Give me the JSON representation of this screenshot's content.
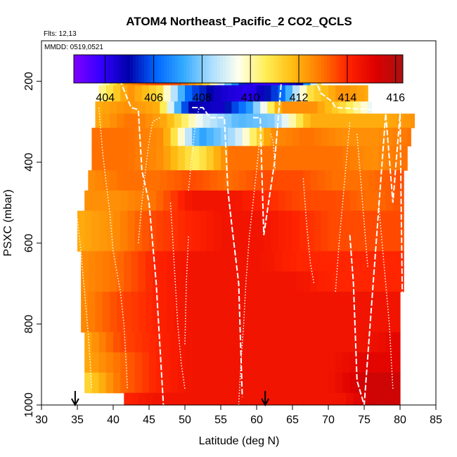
{
  "chart_data": {
    "type": "heatmap",
    "title": "ATOM4 Northeast_Pacific_2 CO2_QCLS",
    "flights_text": "Flts: 12,13",
    "dates_text": "MMDD: 0519,0521",
    "xlabel": "Latitude (deg N)",
    "ylabel": "PSXC (mbar)",
    "xlim": [
      30,
      85
    ],
    "ylim": [
      1000,
      100
    ],
    "x_ticks": [
      "30",
      "35",
      "40",
      "45",
      "50",
      "55",
      "60",
      "65",
      "70",
      "75",
      "80",
      "85"
    ],
    "y_ticks": [
      "200",
      "400",
      "600",
      "800",
      "1000"
    ],
    "grid": false,
    "colorbar": {
      "position": "top",
      "range": [
        402.7,
        416.3
      ],
      "ticks": [
        "404",
        "406",
        "408",
        "410",
        "412",
        "414",
        "416"
      ],
      "colors": [
        "#7f00ff",
        "#3300ff",
        "#0000aa",
        "#0066ff",
        "#33aaff",
        "#aaddff",
        "#ffffee",
        "#ffee55",
        "#ffbb11",
        "#ff7700",
        "#ff2200",
        "#dd0000",
        "#aa1111"
      ]
    },
    "arrows_at_lat": [
      34.7,
      61.2
    ],
    "layers": [
      {
        "p_top": 170,
        "p_bot": 210,
        "lat_min": 38.5,
        "lat_max": 69,
        "values": [
          409.5,
          412.5,
          413.5,
          413.5,
          412,
          408,
          404,
          403.5,
          405,
          412
        ]
      },
      {
        "p_top": 210,
        "p_bot": 250,
        "lat_min": 38,
        "lat_max": 75.5,
        "values": [
          410,
          412.5,
          411,
          406,
          404.5,
          404,
          406,
          411,
          412.5,
          412
        ]
      },
      {
        "p_top": 250,
        "p_bot": 280,
        "lat_min": 37.5,
        "lat_max": 76,
        "values": [
          412,
          412.5,
          412,
          405,
          404.5,
          407,
          412.5,
          412.5,
          411,
          409
        ]
      },
      {
        "p_top": 280,
        "p_bot": 315,
        "lat_min": 37.5,
        "lat_max": 82,
        "values": [
          412,
          413,
          412,
          409,
          407.5,
          408,
          412,
          412,
          412,
          412.5
        ]
      },
      {
        "p_top": 315,
        "p_bot": 360,
        "lat_min": 37,
        "lat_max": 81.5,
        "values": [
          413,
          413,
          412.5,
          407,
          408.5,
          412.5,
          413,
          412.5,
          412.5,
          413
        ]
      },
      {
        "p_top": 360,
        "p_bot": 420,
        "lat_min": 37,
        "lat_max": 81,
        "values": [
          413,
          413,
          412.5,
          410.5,
          413,
          413,
          413,
          413,
          412.5,
          413
        ]
      },
      {
        "p_top": 420,
        "p_bot": 470,
        "lat_min": 36.5,
        "lat_max": 80.5,
        "values": [
          412.5,
          413,
          413,
          413.5,
          413,
          413.5,
          413.5,
          413,
          413,
          413.5
        ]
      },
      {
        "p_top": 470,
        "p_bot": 520,
        "lat_min": 36,
        "lat_max": 80.5,
        "values": [
          412.5,
          412.5,
          413,
          414.5,
          414.5,
          414,
          413.5,
          413.5,
          413,
          413.5
        ]
      },
      {
        "p_top": 520,
        "p_bot": 570,
        "lat_min": 35,
        "lat_max": 80.5,
        "values": [
          412,
          412.5,
          413.5,
          414,
          414.5,
          414.5,
          414,
          413.5,
          413.5,
          413.5
        ]
      },
      {
        "p_top": 570,
        "p_bot": 620,
        "lat_min": 35,
        "lat_max": 80.5,
        "values": [
          412,
          412.5,
          413.5,
          414,
          414.5,
          414.5,
          414,
          413.5,
          413.5,
          413.5
        ]
      },
      {
        "p_top": 620,
        "p_bot": 670,
        "lat_min": 35.5,
        "lat_max": 80.5,
        "values": [
          412.5,
          413,
          414,
          414.5,
          414.5,
          414.5,
          414,
          414,
          414,
          414
        ]
      },
      {
        "p_top": 670,
        "p_bot": 720,
        "lat_min": 35.5,
        "lat_max": 80.5,
        "values": [
          412.5,
          413,
          414,
          414.5,
          414.5,
          414.5,
          414.5,
          414,
          414,
          414
        ]
      },
      {
        "p_top": 720,
        "p_bot": 770,
        "lat_min": 35.5,
        "lat_max": 80,
        "values": [
          412.5,
          413.5,
          414,
          414.5,
          414.5,
          414.5,
          414.5,
          414.5,
          414.5,
          414.5
        ]
      },
      {
        "p_top": 770,
        "p_bot": 820,
        "lat_min": 35.5,
        "lat_max": 80,
        "values": [
          412.5,
          413.5,
          414,
          414.5,
          414.5,
          414.5,
          414.5,
          414.5,
          414.5,
          414.5
        ]
      },
      {
        "p_top": 820,
        "p_bot": 870,
        "lat_min": 36,
        "lat_max": 80,
        "values": [
          412,
          413.5,
          414,
          414.5,
          414.5,
          414.5,
          414.5,
          414.5,
          414.5,
          415
        ]
      },
      {
        "p_top": 870,
        "p_bot": 920,
        "lat_min": 36,
        "lat_max": 80,
        "values": [
          412,
          413,
          414,
          414.5,
          414.5,
          414.5,
          414.5,
          414.5,
          415,
          415
        ]
      },
      {
        "p_top": 920,
        "p_bot": 970,
        "lat_min": 36,
        "lat_max": 80,
        "values": [
          411,
          413,
          414,
          414.5,
          414.5,
          414.5,
          414.5,
          414.5,
          415.5,
          415.5
        ]
      },
      {
        "p_top": 970,
        "p_bot": 1000,
        "lat_min": 41.5,
        "lat_max": 80,
        "values": [
          414,
          414.5,
          414.5,
          414.5,
          414.5,
          414.5,
          414.5,
          414.5,
          415.5,
          415.5
        ]
      }
    ],
    "flight_tracks": {
      "aircraft_dashed": [
        [
          [
            39.8,
            190
          ],
          [
            41,
            200
          ],
          [
            42.5,
            265
          ],
          [
            43.5,
            270
          ],
          [
            44,
            420
          ],
          [
            45,
            500
          ],
          [
            45.5,
            600
          ],
          [
            46,
            700
          ],
          [
            46.5,
            850
          ],
          [
            47,
            1000
          ]
        ],
        [
          [
            51,
            265
          ],
          [
            52.5,
            265
          ],
          [
            53.5,
            290
          ],
          [
            55.5,
            290
          ],
          [
            56,
            470
          ],
          [
            56.5,
            550
          ],
          [
            57.5,
            700
          ],
          [
            58,
            980
          ]
        ],
        [
          [
            59.5,
            290
          ],
          [
            60.5,
            290
          ],
          [
            61,
            580
          ],
          [
            62.5,
            400
          ],
          [
            63.5,
            190
          ],
          [
            68,
            190
          ],
          [
            69,
            230
          ],
          [
            70.5,
            250
          ],
          [
            71,
            265
          ],
          [
            76,
            270
          ]
        ],
        [
          [
            73,
            580
          ],
          [
            73.5,
            700
          ],
          [
            74,
            940
          ],
          [
            75,
            1000
          ],
          [
            78,
            280
          ],
          [
            79,
            500
          ],
          [
            80,
            280
          ],
          [
            80.5,
            1000
          ]
        ]
      ],
      "profiles_dotted": [
        [
          [
            35,
            540
          ],
          [
            35.5,
            620
          ],
          [
            36,
            720
          ],
          [
            36.5,
            820
          ],
          [
            36.8,
            900
          ],
          [
            37,
            960
          ]
        ],
        [
          [
            38,
            265
          ],
          [
            38.5,
            370
          ],
          [
            39,
            450
          ],
          [
            39.5,
            520
          ],
          [
            40,
            620
          ],
          [
            41,
            720
          ],
          [
            41.5,
            800
          ],
          [
            42,
            960
          ]
        ],
        [
          [
            43.5,
            600
          ],
          [
            44,
            500
          ],
          [
            44.5,
            420
          ],
          [
            45,
            350
          ],
          [
            45.5,
            300
          ],
          [
            46.5,
            290
          ]
        ],
        [
          [
            48,
            500
          ],
          [
            48.5,
            650
          ],
          [
            49,
            800
          ],
          [
            49.5,
            900
          ],
          [
            50,
            960
          ]
        ],
        [
          [
            50,
            850
          ],
          [
            50.2,
            700
          ],
          [
            50.5,
            580
          ]
        ],
        [
          [
            50.5,
            470
          ],
          [
            51,
            380
          ],
          [
            51.5,
            300
          ],
          [
            52,
            265
          ]
        ],
        [
          [
            57.5,
            1000
          ],
          [
            57.8,
            900
          ],
          [
            58.2,
            800
          ],
          [
            58.5,
            700
          ],
          [
            59,
            580
          ],
          [
            60,
            420
          ],
          [
            60.5,
            330
          ]
        ],
        [
          [
            62,
            330
          ],
          [
            62.3,
            350
          ],
          [
            62.6,
            420
          ]
        ],
        [
          [
            66.5,
            440
          ],
          [
            67,
            560
          ],
          [
            67.5,
            650
          ],
          [
            68,
            700
          ]
        ],
        [
          [
            71,
            720
          ],
          [
            71.5,
            600
          ],
          [
            72,
            500
          ],
          [
            72.5,
            400
          ],
          [
            73,
            300
          ]
        ],
        [
          [
            74,
            330
          ],
          [
            74.5,
            440
          ],
          [
            75,
            550
          ],
          [
            75.5,
            660
          ]
        ],
        [
          [
            77,
            500
          ],
          [
            77.5,
            600
          ],
          [
            78,
            700
          ],
          [
            78.5,
            800
          ],
          [
            79,
            960
          ]
        ]
      ]
    }
  }
}
